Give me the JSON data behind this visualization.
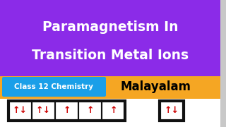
{
  "bg_top": "#8B2BE8",
  "bg_mid": "#F5A623",
  "bg_white": "#FFFFFF",
  "title_line1": "Paramagnetism In",
  "title_line2": "Transition Metal Ions",
  "title_color": "#FFFFFF",
  "title_fontsize": 13.5,
  "badge_bg": "#1A9FE8",
  "badge_text": "Class 12 Chemistry",
  "badge_text_color": "#FFFFFF",
  "badge_fontsize": 7.5,
  "malayalam_text": "Malayalam",
  "malayalam_color": "#000000",
  "malayalam_fontsize": 12,
  "arrow_color": "#CC0000",
  "box_color": "#111111",
  "cells_left": [
    "↑↓",
    "↑↓",
    "↑",
    "↑",
    "↑"
  ],
  "cell_right": "↑↓",
  "scroll_bar_color": "#C8C8C8",
  "figw": 3.2,
  "figh": 1.8,
  "dpi": 100
}
